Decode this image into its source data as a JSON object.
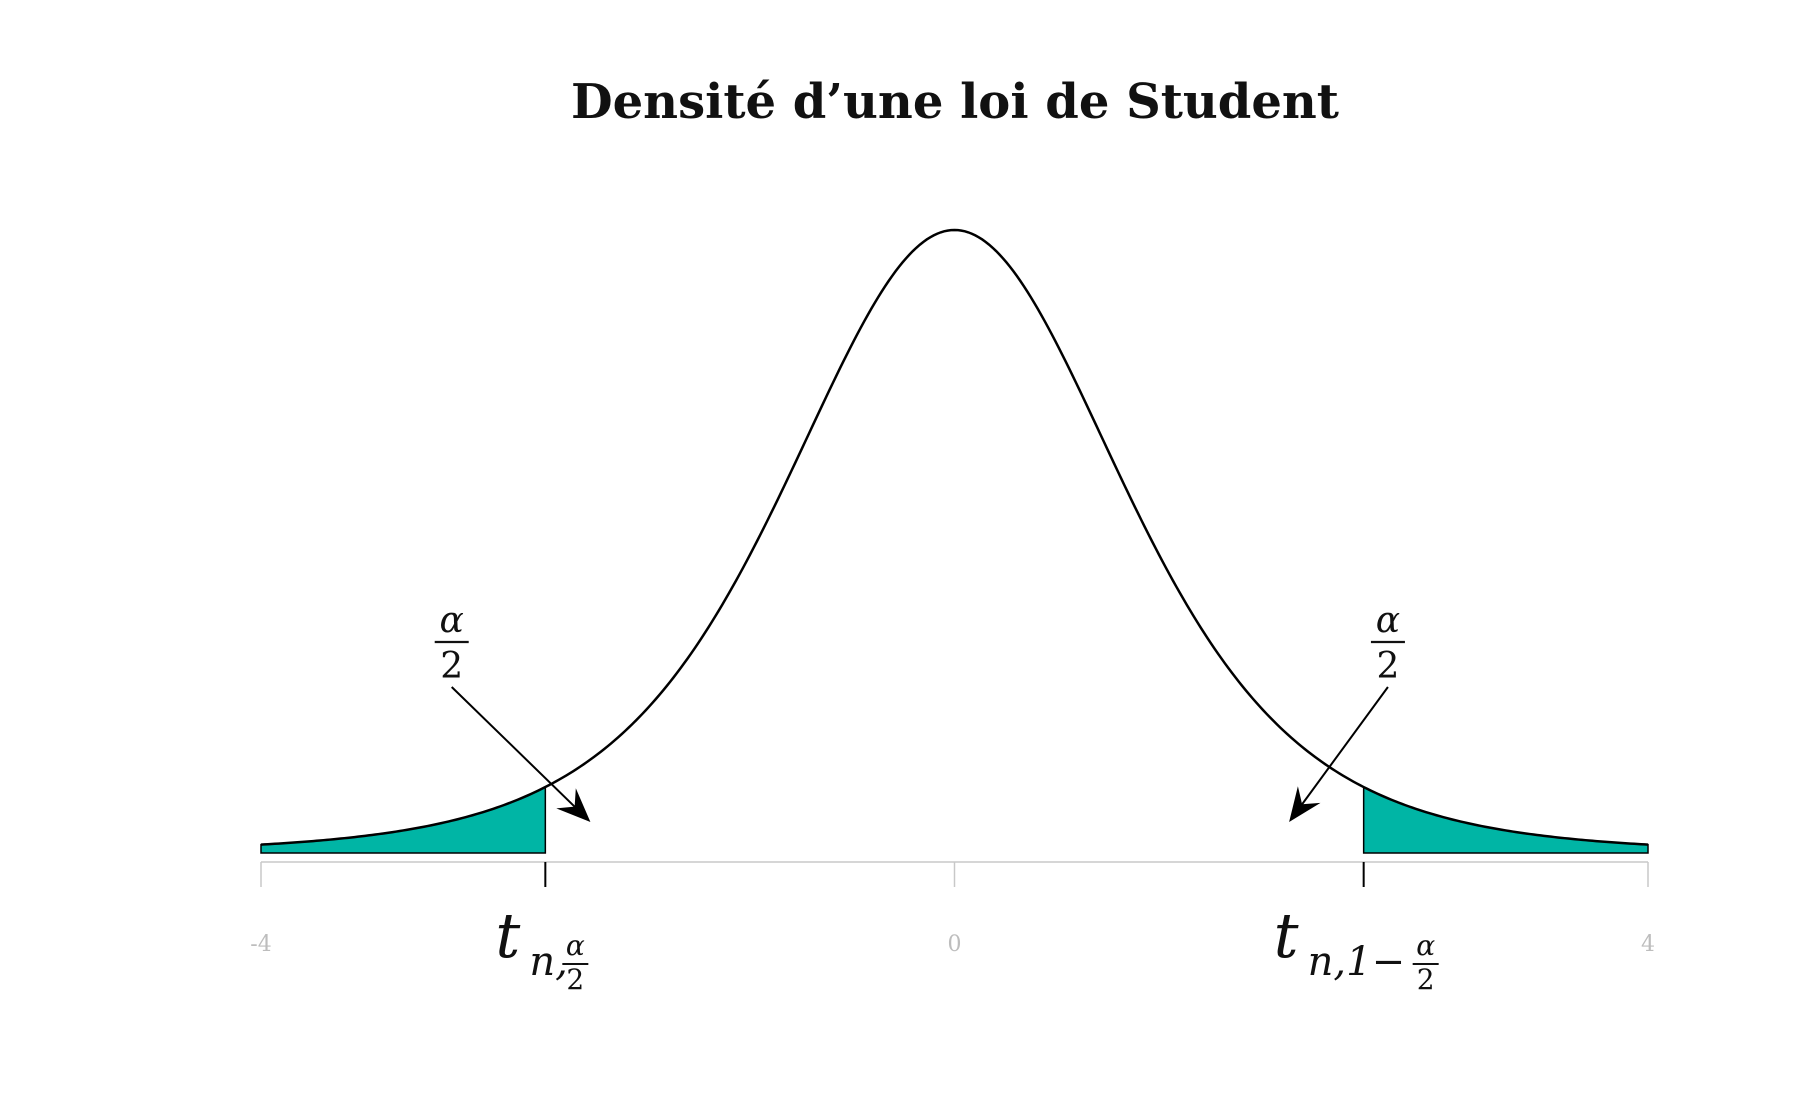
{
  "chart_data": {
    "type": "area",
    "title": "Densité d’une loi de Student",
    "xlabel": "",
    "ylabel": "",
    "xlim": [
      -4,
      4
    ],
    "ylim": [
      0,
      0.4
    ],
    "grid": false,
    "colors": {
      "fill": "#00b5a5",
      "curve": "#000000",
      "axis": "#c8c8c8",
      "tick_label": "#bdbdbd"
    },
    "density": {
      "distribution": "student_t",
      "df": 5
    },
    "critical_values": [
      -2.36,
      2.36
    ],
    "shaded_regions": [
      {
        "from": -4,
        "to": -2.36,
        "label": "α/2"
      },
      {
        "from": 2.36,
        "to": 4,
        "label": "α/2"
      }
    ],
    "ticks": [
      {
        "value": -4,
        "label": "-4"
      },
      {
        "value": 0,
        "label": "0"
      },
      {
        "value": 4,
        "label": "4"
      }
    ],
    "critical_labels": [
      {
        "sub_text": "n,",
        "frac_num": "α",
        "frac_den": "2"
      },
      {
        "sub_text": "n,1−",
        "frac_num": "α",
        "frac_den": "2"
      }
    ],
    "annotations": [
      {
        "num": "α",
        "den": "2"
      },
      {
        "num": "α",
        "den": "2"
      }
    ]
  }
}
